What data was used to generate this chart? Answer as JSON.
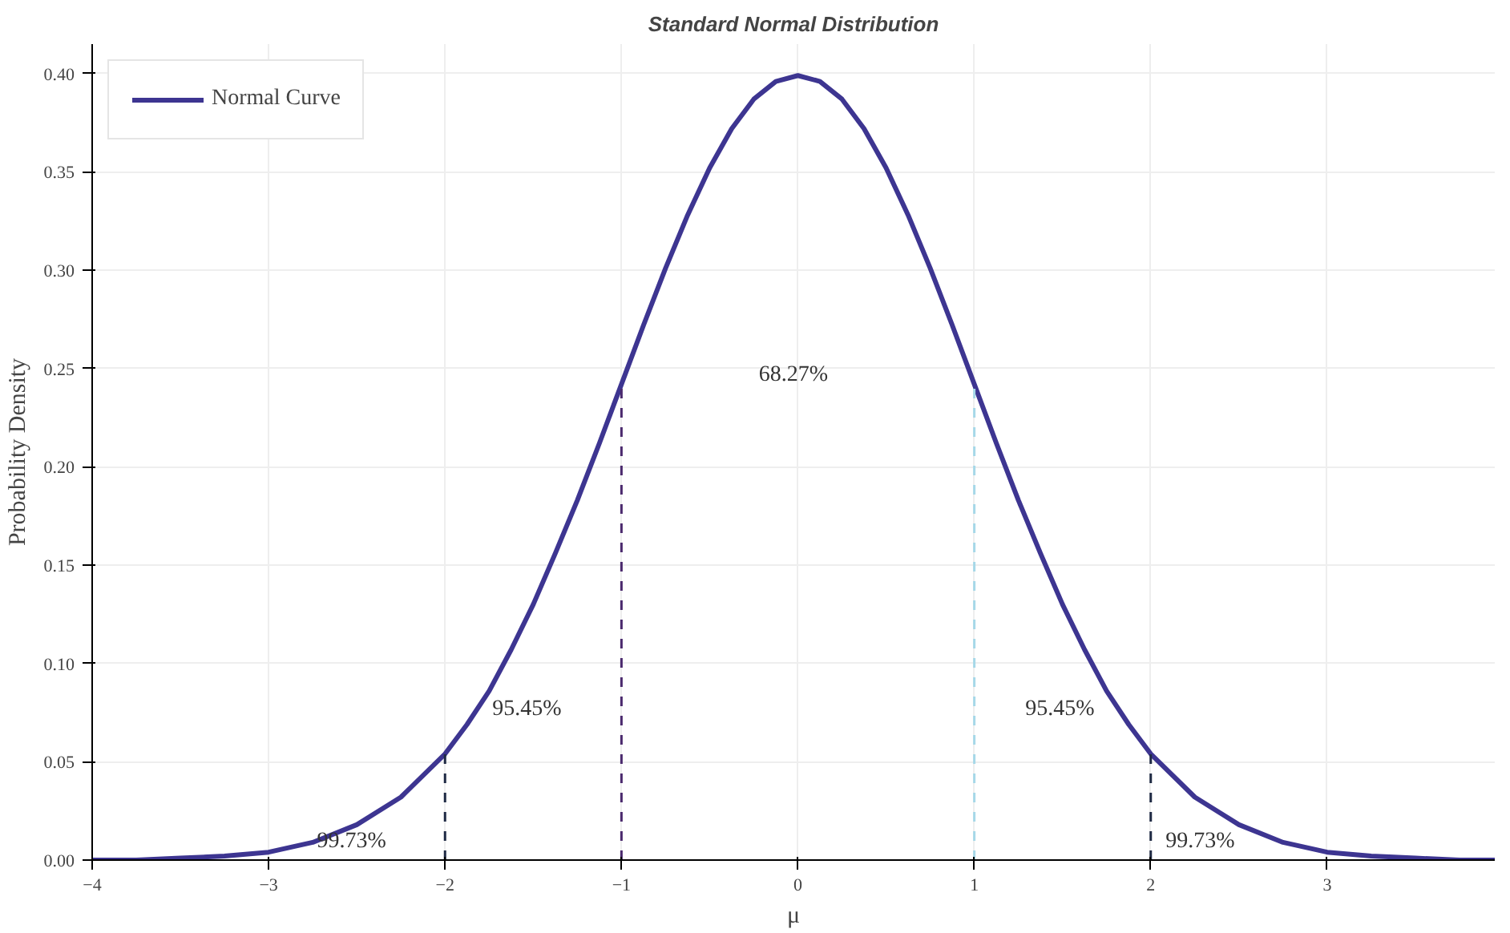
{
  "chart_data": {
    "type": "line",
    "title": "Standard Normal Distribution",
    "xlabel": "μ",
    "ylabel": "Probability Density",
    "xlim": [
      -4,
      3.95
    ],
    "ylim": [
      0,
      0.415
    ],
    "xticks": [
      {
        "value": -4,
        "label": "−4"
      },
      {
        "value": -3,
        "label": "−3"
      },
      {
        "value": -2,
        "label": "−2"
      },
      {
        "value": -1,
        "label": "−1"
      },
      0,
      1,
      2,
      3
    ],
    "yticks": [
      {
        "value": 0,
        "label": "0.00"
      },
      {
        "value": 0.05,
        "label": "0.05"
      },
      {
        "value": 0.1,
        "label": "0.10"
      },
      {
        "value": 0.15,
        "label": "0.15"
      },
      {
        "value": 0.2,
        "label": "0.20"
      },
      {
        "value": 0.25,
        "label": "0.25"
      },
      {
        "value": 0.3,
        "label": "0.30"
      },
      {
        "value": 0.35,
        "label": "0.35"
      },
      {
        "value": 0.4,
        "label": "0.40"
      }
    ],
    "grid": true,
    "legend": "top left",
    "line_style": "solid",
    "marker": "none",
    "series": [
      {
        "name": "Normal Curve",
        "color": "#3d3591",
        "x": [
          -4,
          -3.75,
          -3.5,
          -3.25,
          -3,
          -2.75,
          -2.5,
          -2.25,
          -2,
          -1.875,
          -1.75,
          -1.625,
          -1.5,
          -1.375,
          -1.25,
          -1.125,
          -1,
          -0.875,
          -0.75,
          -0.625,
          -0.5,
          -0.375,
          -0.25,
          -0.125,
          0,
          0.125,
          0.25,
          0.375,
          0.5,
          0.625,
          0.75,
          0.875,
          1,
          1.125,
          1.25,
          1.375,
          1.5,
          1.625,
          1.75,
          1.875,
          2,
          2.25,
          2.5,
          2.75,
          3,
          3.25,
          3.5,
          3.75,
          3.95
        ],
        "values": [
          0.0,
          0.0,
          0.001,
          0.002,
          0.004,
          0.009,
          0.018,
          0.032,
          0.054,
          0.069,
          0.086,
          0.107,
          0.13,
          0.156,
          0.183,
          0.212,
          0.242,
          0.272,
          0.301,
          0.328,
          0.352,
          0.372,
          0.387,
          0.396,
          0.399,
          0.396,
          0.387,
          0.372,
          0.352,
          0.328,
          0.301,
          0.272,
          0.242,
          0.212,
          0.183,
          0.156,
          0.13,
          0.107,
          0.086,
          0.069,
          0.054,
          0.032,
          0.018,
          0.009,
          0.004,
          0.002,
          0.001,
          0.0,
          0.0
        ]
      }
    ],
    "ref_lines": [
      {
        "axis": "x",
        "value": -2,
        "color": "#1f2a44",
        "line_style": "dashed"
      },
      {
        "axis": "x",
        "value": -1,
        "color": "#4b2a6e",
        "line_style": "dashed"
      },
      {
        "axis": "x",
        "value": 1,
        "color": "#a6d8e8",
        "line_style": "dashed"
      },
      {
        "axis": "x",
        "value": 2,
        "color": "#1f2a44",
        "line_style": "dashed"
      }
    ],
    "annotations": [
      "68.27%",
      "95.45%",
      "95.45%",
      "99.73%",
      "99.73%"
    ]
  }
}
